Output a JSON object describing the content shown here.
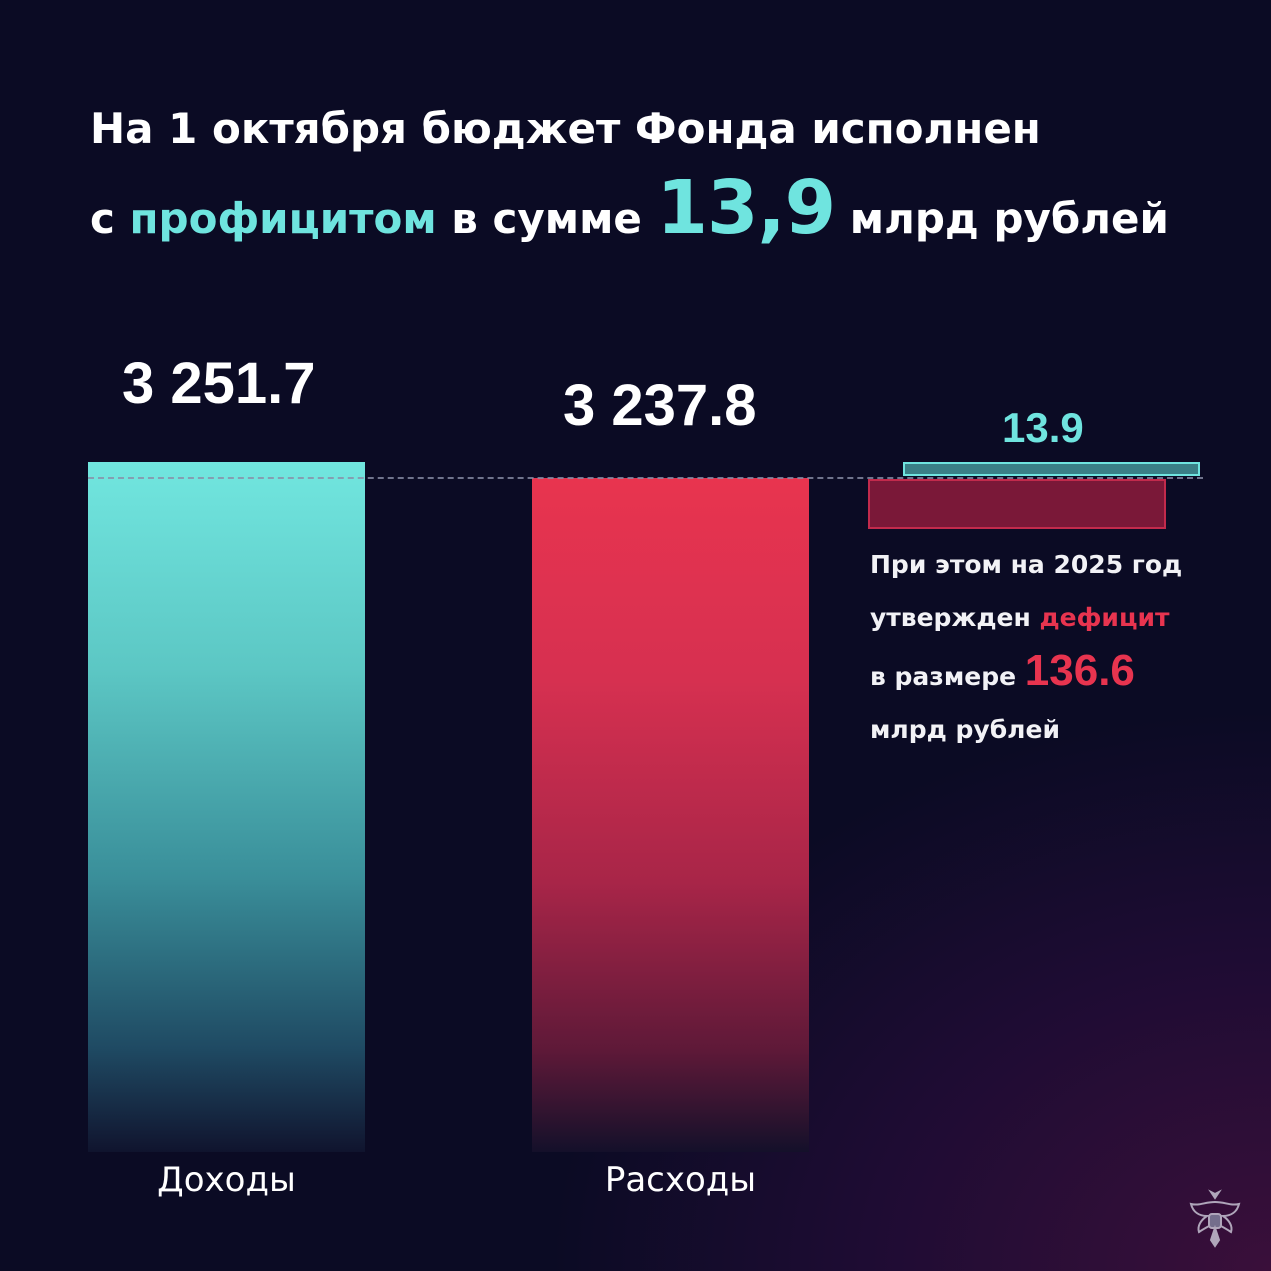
{
  "headline": {
    "line1": "На 1 октября бюджет Фонда исполнен",
    "line2_prefix": "с",
    "line2_accent": "профицитом",
    "line2_mid": "в сумме",
    "line2_value": "13,9",
    "line2_suffix": "млрд рублей"
  },
  "note": {
    "line1": "При этом на 2025 год",
    "line2_prefix": "утвержден",
    "line2_accent": "дефицит",
    "line3_prefix": "в размере",
    "line3_value": "136.6",
    "line4": "млрд рублей"
  },
  "colors": {
    "accent_teal": "#6fe4df",
    "accent_red": "#e8344f",
    "background": "#0b0b24"
  },
  "chart_data": {
    "type": "bar",
    "categories": [
      "Доходы",
      "Расходы"
    ],
    "values": [
      3251.7,
      3237.8
    ],
    "value_labels": [
      "3 251.7",
      "3 237.8"
    ],
    "surplus": {
      "value": 13.9,
      "label": "13.9"
    },
    "planned_deficit": {
      "value": 136.6
    },
    "title": "",
    "xlabel": "",
    "ylabel": "",
    "grid": false
  }
}
